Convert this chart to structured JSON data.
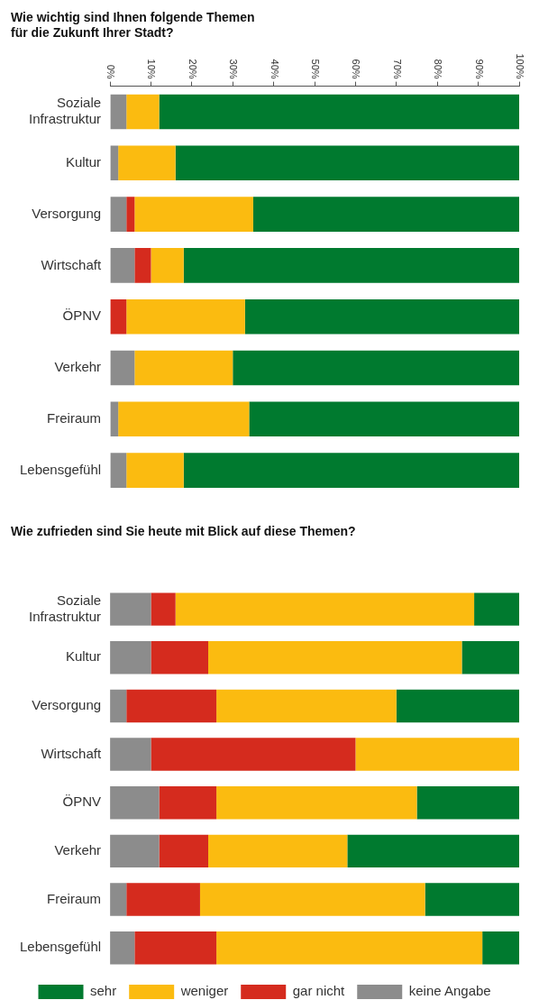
{
  "chart_data": [
    {
      "type": "bar",
      "orientation": "horizontal",
      "stacked": true,
      "title": "Wie wichtig sind Ihnen folgende Themen\nfür die Zukunft Ihrer Stadt?",
      "categories": [
        "Soziale Infrastruktur",
        "Kultur",
        "Versorgung",
        "Wirtschaft",
        "ÖPNV",
        "Verkehr",
        "Freiraum",
        "Lebensgefühl"
      ],
      "series": [
        {
          "color": "#8c8c8c",
          "values": [
            4,
            2,
            4,
            6,
            0,
            6,
            2,
            4
          ]
        },
        {
          "color": "#d52b1e",
          "values": [
            0,
            0,
            2,
            4,
            4,
            0,
            0,
            0
          ]
        },
        {
          "color": "#fbbb10",
          "values": [
            8,
            14,
            29,
            8,
            29,
            24,
            32,
            14
          ]
        },
        {
          "color": "#007a2f",
          "values": [
            88,
            84,
            65,
            82,
            67,
            70,
            66,
            82
          ]
        }
      ],
      "xlim": [
        0,
        100
      ],
      "xticks": [
        {
          "value": 0,
          "label": "0%"
        },
        {
          "value": 10,
          "label": "10%"
        },
        {
          "value": 20,
          "label": "20%"
        },
        {
          "value": 30,
          "label": "30%"
        },
        {
          "value": 40,
          "label": "40%"
        },
        {
          "value": 50,
          "label": "50%"
        },
        {
          "value": 60,
          "label": "60%"
        },
        {
          "value": 70,
          "label": "70%"
        },
        {
          "value": 80,
          "label": "80%"
        },
        {
          "value": 90,
          "label": "90%"
        },
        {
          "value": 100,
          "label": "100%"
        }
      ],
      "grid": false,
      "legend": false
    },
    {
      "type": "bar",
      "orientation": "horizontal",
      "stacked": true,
      "title": "Wie zufrieden sind Sie heute mit Blick auf diese Themen?",
      "categories": [
        "Soziale Infrastruktur",
        "Kultur",
        "Versorgung",
        "Wirtschaft",
        "ÖPNV",
        "Verkehr",
        "Freiraum",
        "Lebensgefühl"
      ],
      "series": [
        {
          "name": "keine Angabe",
          "color": "#8c8c8c",
          "values": [
            10,
            10,
            4,
            10,
            12,
            12,
            4,
            6
          ]
        },
        {
          "name": "gar nicht",
          "color": "#d52b1e",
          "values": [
            6,
            14,
            22,
            50,
            14,
            12,
            18,
            20
          ]
        },
        {
          "name": "weniger",
          "color": "#fbbb10",
          "values": [
            73,
            62,
            44,
            40,
            49,
            34,
            55,
            65
          ]
        },
        {
          "name": "sehr",
          "color": "#007a2f",
          "values": [
            11,
            14,
            30,
            0,
            25,
            42,
            23,
            9
          ]
        }
      ],
      "xlim": [
        0,
        100
      ],
      "tick_labels": "y",
      "grid": false,
      "legend": "bottom"
    }
  ]
}
